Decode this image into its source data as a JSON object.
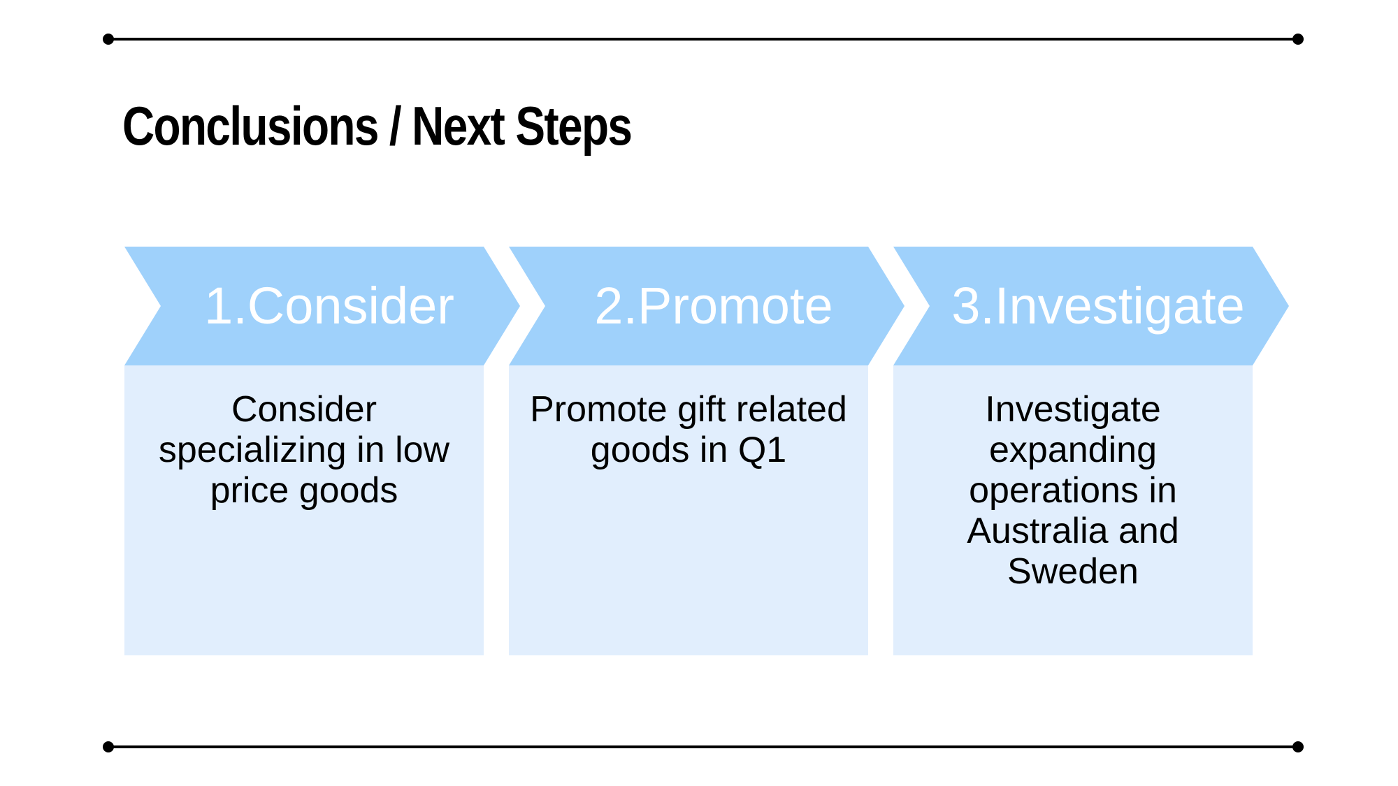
{
  "title": "Conclusions / Next Steps",
  "colors": {
    "chevron": "#9fd1fb",
    "card": "#e1eefd",
    "rule": "#000000"
  },
  "steps": [
    {
      "label": "1.Consider",
      "description": "Consider specializing in low price goods"
    },
    {
      "label": "2.Promote",
      "description": "Promote gift related goods in Q1"
    },
    {
      "label": "3.Investigate",
      "description": "Investigate expanding operations in Australia and Sweden"
    }
  ]
}
